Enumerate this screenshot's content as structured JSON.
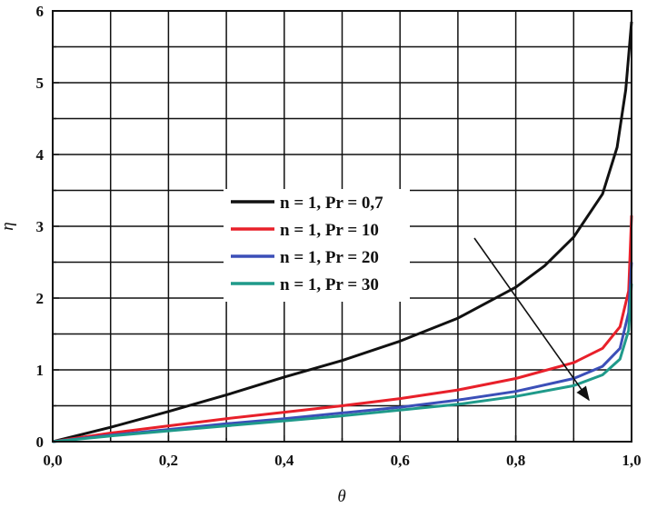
{
  "chart_data": {
    "type": "line",
    "xlabel": "θ",
    "ylabel": "η",
    "xlim": [
      0,
      1
    ],
    "ylim": [
      0,
      6
    ],
    "x_ticks": [
      "0,0",
      "0,2",
      "0,4",
      "0,6",
      "0,8",
      "1,0"
    ],
    "y_ticks": [
      "0",
      "1",
      "2",
      "3",
      "4",
      "5",
      "6"
    ],
    "grid": true,
    "legend_position": "center-left",
    "annotation": "arrow indicating increasing Pr",
    "series": [
      {
        "name": "n = 1, Pr = 0,7",
        "color": "#111111",
        "points": [
          [
            0,
            0
          ],
          [
            0.1,
            0.2
          ],
          [
            0.2,
            0.42
          ],
          [
            0.3,
            0.65
          ],
          [
            0.4,
            0.9
          ],
          [
            0.5,
            1.13
          ],
          [
            0.6,
            1.4
          ],
          [
            0.7,
            1.72
          ],
          [
            0.8,
            2.15
          ],
          [
            0.85,
            2.45
          ],
          [
            0.9,
            2.85
          ],
          [
            0.95,
            3.45
          ],
          [
            0.975,
            4.1
          ],
          [
            0.99,
            4.9
          ],
          [
            1.0,
            5.85
          ]
        ]
      },
      {
        "name": "n = 1, Pr = 10",
        "color": "#e8202a",
        "points": [
          [
            0,
            0
          ],
          [
            0.1,
            0.12
          ],
          [
            0.2,
            0.22
          ],
          [
            0.3,
            0.32
          ],
          [
            0.4,
            0.41
          ],
          [
            0.5,
            0.5
          ],
          [
            0.6,
            0.6
          ],
          [
            0.7,
            0.72
          ],
          [
            0.8,
            0.88
          ],
          [
            0.9,
            1.1
          ],
          [
            0.95,
            1.3
          ],
          [
            0.98,
            1.6
          ],
          [
            0.995,
            2.1
          ],
          [
            1.0,
            3.15
          ]
        ]
      },
      {
        "name": "n = 1, Pr = 20",
        "color": "#3b4fb8",
        "points": [
          [
            0,
            0
          ],
          [
            0.1,
            0.09
          ],
          [
            0.2,
            0.17
          ],
          [
            0.3,
            0.25
          ],
          [
            0.4,
            0.32
          ],
          [
            0.5,
            0.4
          ],
          [
            0.6,
            0.48
          ],
          [
            0.7,
            0.58
          ],
          [
            0.8,
            0.7
          ],
          [
            0.9,
            0.88
          ],
          [
            0.95,
            1.05
          ],
          [
            0.98,
            1.3
          ],
          [
            0.995,
            1.8
          ],
          [
            1.0,
            2.5
          ]
        ]
      },
      {
        "name": "n = 1, Pr = 30",
        "color": "#1f9a8a",
        "points": [
          [
            0,
            0
          ],
          [
            0.1,
            0.08
          ],
          [
            0.2,
            0.15
          ],
          [
            0.3,
            0.22
          ],
          [
            0.4,
            0.29
          ],
          [
            0.5,
            0.36
          ],
          [
            0.6,
            0.44
          ],
          [
            0.7,
            0.52
          ],
          [
            0.8,
            0.63
          ],
          [
            0.9,
            0.78
          ],
          [
            0.95,
            0.93
          ],
          [
            0.98,
            1.15
          ],
          [
            0.995,
            1.55
          ],
          [
            1.0,
            2.2
          ]
        ]
      }
    ]
  }
}
